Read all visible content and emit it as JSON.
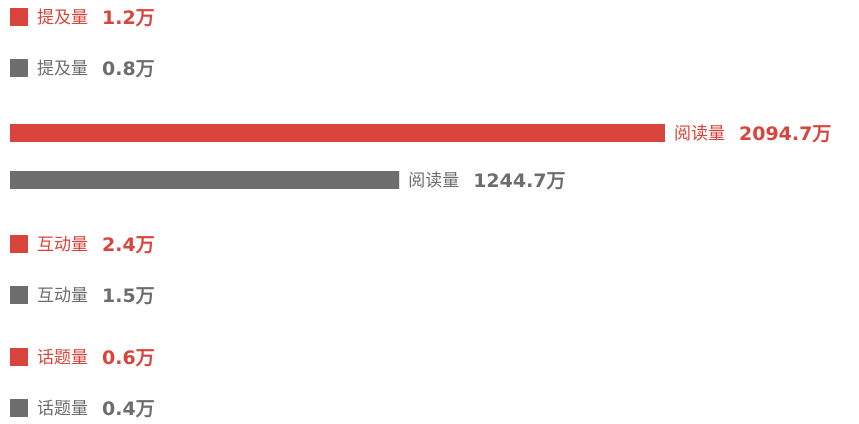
{
  "colors": {
    "series_a": "#d9453c",
    "series_b": "#6d6d6d"
  },
  "chart_data": {
    "type": "bar",
    "orientation": "horizontal",
    "unit": "万",
    "legend": "none",
    "grid": false,
    "categories": [
      "提及量",
      "阅读量",
      "互动量",
      "话题量"
    ],
    "series": [
      {
        "values": [
          1.2,
          2094.7,
          2.4,
          0.6
        ]
      },
      {
        "values": [
          0.8,
          1244.7,
          1.5,
          0.4
        ]
      }
    ],
    "data_labels": [
      [
        "1.2万",
        "2094.7万",
        "2.4万",
        "0.6万"
      ],
      [
        "0.8万",
        "1244.7万",
        "1.5万",
        "0.4万"
      ]
    ],
    "xlim": [
      0,
      2094.7
    ]
  }
}
